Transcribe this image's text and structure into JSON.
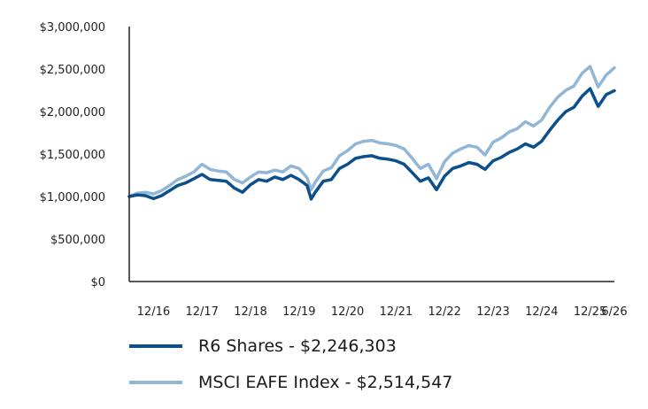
{
  "chart_data": {
    "type": "line",
    "title": "",
    "xlabel": "",
    "ylabel": "",
    "ylim": [
      0,
      3000000
    ],
    "xlim": [
      "2016-06",
      "2026-06"
    ],
    "y_ticks": [
      "$0",
      "$500,000",
      "$1,000,000",
      "$1,500,000",
      "$2,000,000",
      "$2,500,000",
      "$3,000,000"
    ],
    "x_ticks": [
      "12/16",
      "12/17",
      "12/18",
      "12/19",
      "12/20",
      "12/21",
      "12/22",
      "12/23",
      "12/24",
      "12/25",
      "6/26"
    ],
    "grid": false,
    "legend_position": "bottom-left",
    "x": [
      "2016-06",
      "2016-08",
      "2016-10",
      "2016-12",
      "2017-02",
      "2017-04",
      "2017-06",
      "2017-08",
      "2017-10",
      "2017-12",
      "2018-02",
      "2018-04",
      "2018-06",
      "2018-08",
      "2018-10",
      "2018-12",
      "2019-02",
      "2019-04",
      "2019-06",
      "2019-08",
      "2019-10",
      "2019-12",
      "2020-02",
      "2020-03",
      "2020-04",
      "2020-06",
      "2020-08",
      "2020-10",
      "2020-12",
      "2021-02",
      "2021-04",
      "2021-06",
      "2021-08",
      "2021-10",
      "2021-12",
      "2022-02",
      "2022-04",
      "2022-06",
      "2022-08",
      "2022-10",
      "2022-12",
      "2023-02",
      "2023-04",
      "2023-06",
      "2023-08",
      "2023-10",
      "2023-12",
      "2024-02",
      "2024-04",
      "2024-06",
      "2024-08",
      "2024-10",
      "2024-12",
      "2025-02",
      "2025-04",
      "2025-06",
      "2025-08",
      "2025-10",
      "2025-12",
      "2026-02",
      "2026-04",
      "2026-06"
    ],
    "series": [
      {
        "name": "R6 Shares - $2,246,303",
        "color": "#0b4f8c",
        "values": [
          1000000,
          1020000,
          1010000,
          975000,
          1010000,
          1070000,
          1130000,
          1160000,
          1210000,
          1260000,
          1200000,
          1190000,
          1180000,
          1100000,
          1050000,
          1140000,
          1200000,
          1180000,
          1230000,
          1200000,
          1250000,
          1200000,
          1130000,
          970000,
          1050000,
          1180000,
          1200000,
          1330000,
          1380000,
          1450000,
          1470000,
          1480000,
          1450000,
          1440000,
          1420000,
          1380000,
          1280000,
          1180000,
          1220000,
          1080000,
          1240000,
          1330000,
          1360000,
          1400000,
          1380000,
          1320000,
          1420000,
          1460000,
          1520000,
          1560000,
          1620000,
          1580000,
          1650000,
          1780000,
          1900000,
          2000000,
          2050000,
          2180000,
          2270000,
          2060000,
          2200000,
          2246303
        ]
      },
      {
        "name": "MSCI EAFE Index - $2,514,547",
        "color": "#92b6d5",
        "values": [
          1000000,
          1040000,
          1050000,
          1030000,
          1070000,
          1130000,
          1200000,
          1240000,
          1290000,
          1380000,
          1320000,
          1300000,
          1290000,
          1200000,
          1160000,
          1230000,
          1290000,
          1280000,
          1310000,
          1290000,
          1360000,
          1330000,
          1220000,
          1080000,
          1170000,
          1300000,
          1340000,
          1480000,
          1540000,
          1620000,
          1650000,
          1660000,
          1630000,
          1620000,
          1600000,
          1560000,
          1450000,
          1330000,
          1380000,
          1210000,
          1410000,
          1510000,
          1560000,
          1600000,
          1580000,
          1490000,
          1640000,
          1690000,
          1760000,
          1800000,
          1880000,
          1830000,
          1900000,
          2050000,
          2170000,
          2250000,
          2300000,
          2450000,
          2530000,
          2290000,
          2430000,
          2514547
        ]
      }
    ]
  },
  "legend": {
    "items": [
      {
        "label": "R6 Shares - $2,246,303",
        "color": "#0b4f8c"
      },
      {
        "label": "MSCI EAFE Index - $2,514,547",
        "color": "#92b6d5"
      }
    ]
  }
}
